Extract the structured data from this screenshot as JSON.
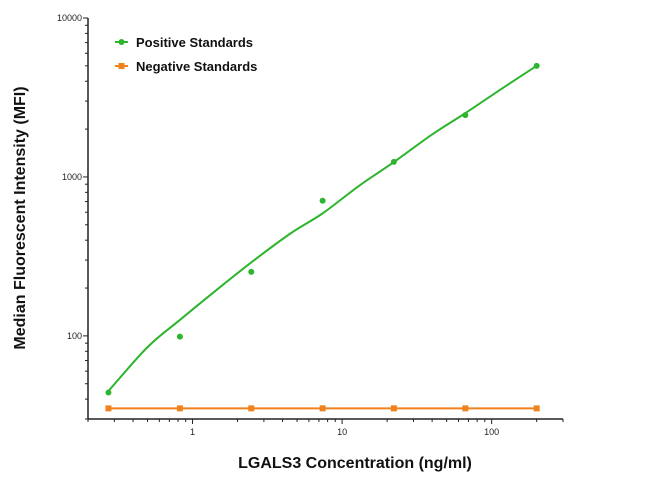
{
  "chart_data": {
    "type": "scatter",
    "xlabel": "LGALS3 Concentration (ng/ml)",
    "ylabel": "Median Fluorescent Intensity (MFI)",
    "xscale": "log",
    "yscale": "log",
    "xlim": [
      0.2,
      300
    ],
    "ylim": [
      30,
      10000
    ],
    "xticks": [
      1,
      10,
      100
    ],
    "xtick_labels": [
      "1",
      "10",
      "100"
    ],
    "yticks": [
      100,
      1000,
      10000
    ],
    "ytick_labels": [
      "100",
      "1000",
      "10000"
    ],
    "grid": false,
    "legend_position": "top-left",
    "series": [
      {
        "name": "Positive Standards",
        "color": "#2db52d",
        "marker": "circle",
        "x": [
          0.274,
          0.823,
          2.47,
          7.41,
          22.2,
          66.7,
          200
        ],
        "y": [
          44,
          99,
          253,
          708,
          1243,
          2450,
          5000
        ],
        "fit_curve": {
          "x": [
            0.274,
            0.5,
            0.823,
            1.5,
            2.47,
            4.5,
            7.41,
            13,
            22.2,
            40,
            66.7,
            120,
            200
          ],
          "y": [
            45,
            85,
            126,
            200,
            290,
            440,
            590,
            880,
            1240,
            1850,
            2520,
            3650,
            5000
          ]
        }
      },
      {
        "name": "Negative Standards",
        "color": "#f0821e",
        "marker": "square",
        "x": [
          0.274,
          0.823,
          2.47,
          7.41,
          22.2,
          66.7,
          200
        ],
        "y": [
          35,
          35,
          35,
          35,
          35,
          35,
          35
        ]
      }
    ]
  }
}
